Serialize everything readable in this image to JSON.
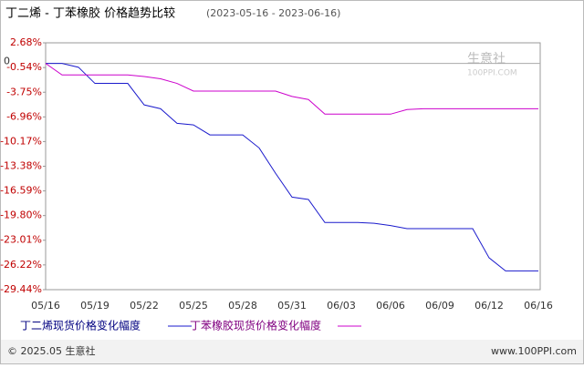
{
  "chart_data": {
    "type": "line",
    "title": "丁二烯 - 丁苯橡胶 价格趋势比较",
    "subtitle": "(2023-05-16 - 2023-06-16)",
    "categories": [
      "05/16",
      null,
      null,
      "05/19",
      null,
      null,
      "05/22",
      null,
      null,
      "05/25",
      null,
      null,
      "05/28",
      null,
      null,
      "05/31",
      null,
      null,
      "06/03",
      null,
      null,
      "06/06",
      null,
      null,
      "06/09",
      null,
      null,
      "06/12",
      null,
      null,
      "06/16"
    ],
    "series": [
      {
        "name": "丁二烯现货价格变化幅度",
        "color": "#1a1acc",
        "values": [
          0,
          0,
          -0.5,
          -2.6,
          -2.6,
          -2.6,
          -5.4,
          -5.9,
          -7.8,
          -8.0,
          -9.3,
          -9.3,
          -9.3,
          -11.0,
          -14.3,
          -17.4,
          -17.7,
          -20.7,
          -20.7,
          -20.7,
          -20.8,
          -21.1,
          -21.5,
          -21.5,
          -21.5,
          -21.5,
          -21.5,
          -25.3,
          -27.0,
          -27.0,
          -27.0
        ]
      },
      {
        "name": "丁苯橡胶现货价格变化幅度",
        "color": "#cc00cc",
        "values": [
          0,
          -1.5,
          -1.5,
          -1.5,
          -1.5,
          -1.5,
          -1.7,
          -2.0,
          -2.6,
          -3.6,
          -3.6,
          -3.6,
          -3.6,
          -3.6,
          -3.6,
          -4.3,
          -4.7,
          -6.6,
          -6.6,
          -6.6,
          -6.6,
          -6.6,
          -6.0,
          -5.9,
          -5.9,
          -5.9,
          -5.9,
          -5.9,
          -5.9,
          -5.9,
          -5.9
        ]
      }
    ],
    "ylim": [
      -29.44,
      2.68
    ],
    "yticks": [
      {
        "value": 2.68,
        "label": "2.68%"
      },
      {
        "value": -0.54,
        "label": "-0.54%"
      },
      {
        "value": -3.75,
        "label": "-3.75%"
      },
      {
        "value": -6.96,
        "label": "-6.96%"
      },
      {
        "value": -10.17,
        "label": "-10.17%"
      },
      {
        "value": -13.38,
        "label": "-13.38%"
      },
      {
        "value": -16.59,
        "label": "-16.59%"
      },
      {
        "value": -19.8,
        "label": "-19.80%"
      },
      {
        "value": -23.01,
        "label": "-23.01%"
      },
      {
        "value": -26.22,
        "label": "-26.22%"
      },
      {
        "value": -29.44,
        "label": "-29.44%"
      }
    ],
    "baseline": 0,
    "watermark": [
      "生意社",
      "100PPI.COM"
    ],
    "footer_left": "© 2025.05 生意社",
    "footer_right": "www.100PPI.com"
  }
}
